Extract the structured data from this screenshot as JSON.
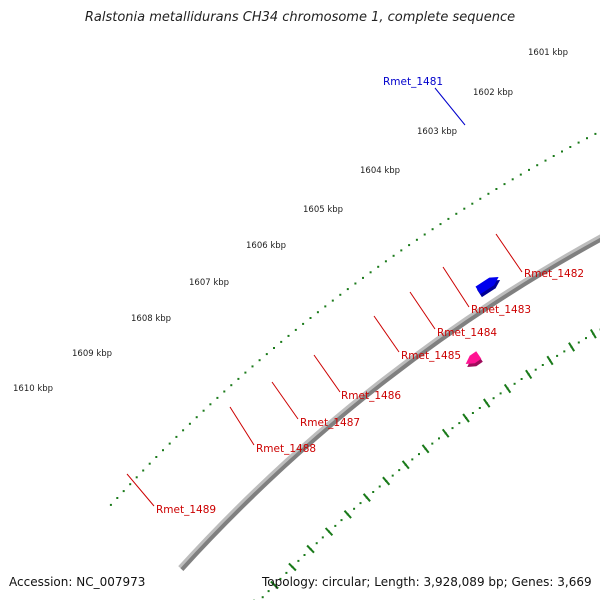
{
  "title": "Ralstonia metallidurans CH34 chromosome 1, complete sequence",
  "footer": {
    "accession": "Accession: NC_007973",
    "topology": "Topology: circular; Length: 3,928,089 bp; Genes: 3,669"
  },
  "colors": {
    "backbone": "#808080",
    "tick": "#1a7a1a",
    "red": "#ff0000",
    "blue": "#0000ee",
    "orange": "#ff8c00",
    "magenta": "#ff1493",
    "yellowgreen": "#adff2f",
    "khaki": "#f0e68c",
    "darkkhaki": "#bdb76b",
    "gray": "#666666",
    "label_red": "#cc0000",
    "label_blue": "#0000cc"
  },
  "scale_labels": [
    "1601 kbp",
    "1602 kbp",
    "1603 kbp",
    "1604 kbp",
    "1605 kbp",
    "1606 kbp",
    "1607 kbp",
    "1608 kbp",
    "1609 kbp",
    "1610 kbp"
  ],
  "gene_labels": [
    "Rmet_1481",
    "Rmet_1482",
    "Rmet_1483",
    "Rmet_1484",
    "Rmet_1485",
    "Rmet_1486",
    "Rmet_1487",
    "Rmet_1488",
    "Rmet_1489"
  ]
}
